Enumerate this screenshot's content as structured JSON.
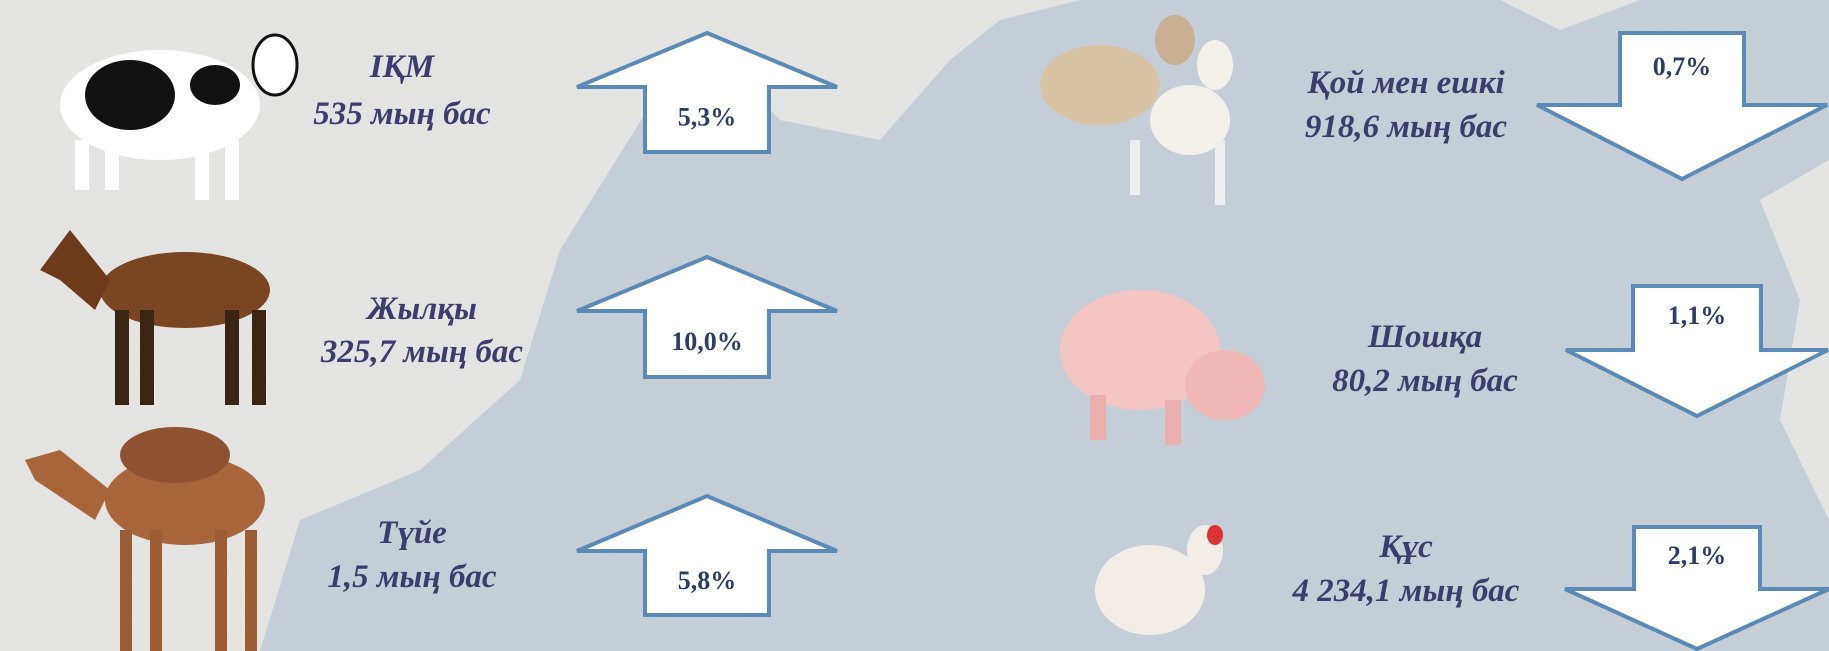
{
  "left_column": [
    {
      "name": "ІҚМ",
      "count": "535 мың бас",
      "change": "5,3%"
    },
    {
      "name": "Жылқы",
      "count": "325,7 мың бас",
      "change": "10,0%"
    },
    {
      "name": "Түйе",
      "count": "1,5 мың бас",
      "change": "5,8%"
    }
  ],
  "right_column": [
    {
      "name": "Қой мен ешкі",
      "count": "918,6 мың бас",
      "change": "0,7%"
    },
    {
      "name": "Шошқа",
      "count": "80,2 мың бас",
      "change": "1,1%"
    },
    {
      "name": "Құс",
      "count": "4 234,1 мың бас",
      "change": "2,1%"
    }
  ]
}
